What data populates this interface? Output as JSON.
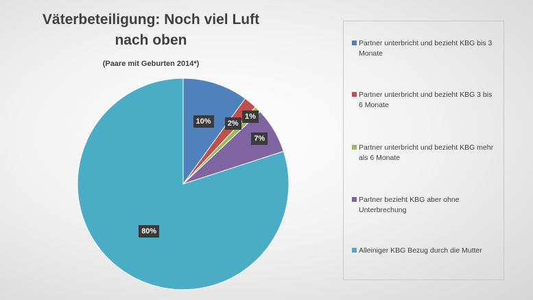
{
  "chart_data": {
    "type": "pie",
    "title": "Väterbeteiligung: Noch viel Luft nach oben",
    "subtitle": "(Paare mit Geburten 2014*)",
    "legend_position": "right",
    "categories": [
      "Partner unterbricht und bezieht KBG bis 3 Monate",
      "Partner unterbricht und bezieht KBG 3 bis 6 Monate",
      "Partner unterbricht und bezieht KBG mehr als 6 Monate",
      "Partner bezieht KBG aber ohne Unterbrechung",
      "Alleiniger KBG Bezug durch die Mutter"
    ],
    "values": [
      10,
      2,
      1,
      7,
      80
    ],
    "data_labels": [
      "10%",
      "2%",
      "1%",
      "7%",
      "80%"
    ],
    "colors": [
      "#4f81bd",
      "#c0504d",
      "#9bbb59",
      "#8064a2",
      "#4bacc6"
    ]
  }
}
